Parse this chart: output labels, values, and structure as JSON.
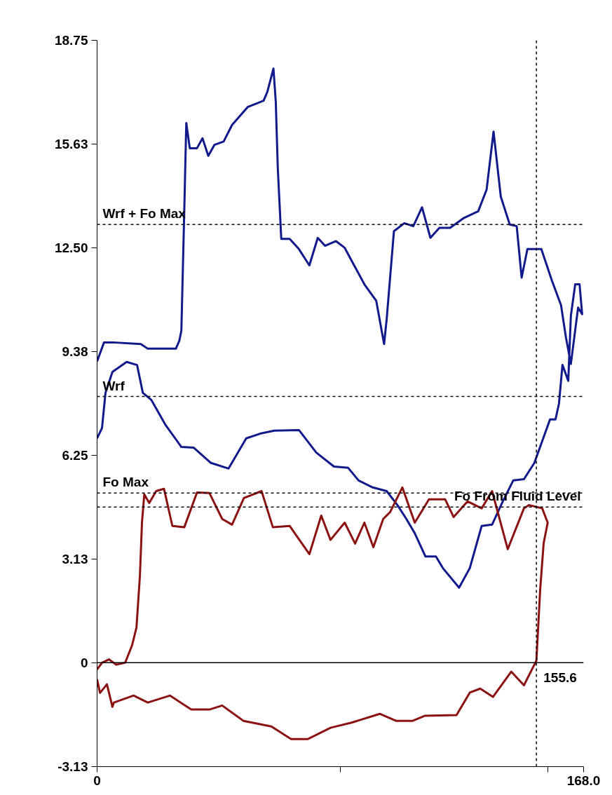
{
  "chart_data": {
    "type": "line",
    "xlim": [
      0,
      168
    ],
    "xticks": [
      0,
      {
        "value": 84,
        "label": null
      },
      {
        "value": 155.6,
        "label": null
      },
      {
        "value": 168,
        "label": "168.0"
      }
    ],
    "ylim": [
      -3.13,
      18.75
    ],
    "yticks": [
      18.75,
      15.63,
      {
        "value": 12.5,
        "label": "12.50"
      },
      9.38,
      6.25,
      3.13,
      0,
      -3.13
    ],
    "grid": false,
    "line_style": "solid",
    "series": [
      {
        "color": "#111a8c",
        "x": [
          0,
          1.7,
          2.9,
          5.3,
          10.2,
          13.8,
          15.8,
          18.7,
          23.5,
          29.1,
          33.3,
          39.3,
          45.4,
          51.5,
          56.3,
          61.2,
          69.7,
          75.7,
          81.8,
          86.7,
          90.3,
          95.2,
          100.0,
          103.7,
          106.8,
          109.7,
          113.4,
          117.0,
          119.4,
          125.0,
          128.7,
          132.8,
          136.4,
          140.1,
          143.7,
          147.4,
          151.0,
          156.4,
          158.3,
          159.5,
          160.7,
          162.7,
          163.6,
          165.1,
          166.6,
          167.5,
          166.1,
          163.6,
          161.9,
          160.2,
          157.1,
          153.4,
          148.6,
          146.6,
          144.9,
          142.5,
          139.4,
          136.9,
          134.5,
          131.6,
          126.7,
          121.9,
          118.2,
          115.1,
          112.2,
          109.2,
          106.1,
          102.5,
          100.0,
          99.1,
          96.4,
          92.3,
          88.4,
          85.5,
          82.5,
          78.7,
          76.2,
          73.3,
          69.7,
          66.5,
          63.6,
          62.4,
          61.7,
          60.9,
          58.8,
          57.5,
          52.0,
          46.6,
          43.7,
          40.5,
          38.4,
          36.4,
          34.5,
          32.0,
          30.8,
          30.1,
          29.1,
          28.4,
          27.2,
          17.5,
          15.1,
          5.3,
          2.4,
          0
        ],
        "values": [
          6.76,
          7.07,
          8.13,
          8.76,
          9.06,
          8.97,
          8.13,
          7.92,
          7.18,
          6.5,
          6.48,
          6.02,
          5.85,
          6.76,
          6.9,
          6.99,
          7.01,
          6.33,
          5.91,
          5.87,
          5.49,
          5.28,
          5.17,
          4.75,
          4.33,
          3.9,
          3.2,
          3.2,
          2.85,
          2.26,
          2.85,
          4.12,
          4.16,
          4.86,
          5.49,
          5.53,
          6.02,
          7.33,
          7.33,
          7.81,
          8.97,
          8.49,
          10.45,
          11.4,
          11.4,
          10.5,
          10.7,
          9.0,
          9.8,
          10.77,
          11.5,
          12.46,
          12.46,
          11.6,
          13.15,
          13.2,
          14.04,
          16.0,
          14.25,
          13.6,
          13.4,
          13.1,
          13.1,
          12.8,
          13.72,
          13.15,
          13.24,
          13.0,
          10.35,
          9.6,
          10.9,
          11.4,
          12.03,
          12.5,
          12.7,
          12.56,
          12.8,
          11.97,
          12.46,
          12.77,
          12.77,
          14.9,
          16.9,
          17.9,
          17.2,
          16.93,
          16.74,
          16.2,
          15.7,
          15.6,
          15.27,
          15.8,
          15.5,
          15.5,
          16.26,
          13.6,
          10.0,
          9.7,
          9.46,
          9.46,
          9.6,
          9.65,
          9.65,
          9.08
        ]
      },
      {
        "color": "#8c1212",
        "x": [
          0,
          1.7,
          4.1,
          6.6,
          9.7,
          12.1,
          13.6,
          14.8,
          15.5,
          16.3,
          18.0,
          20.4,
          23.1,
          26.0,
          30.1,
          34.5,
          38.8,
          43.2,
          46.6,
          50.7,
          56.8,
          60.7,
          66.5,
          73.3,
          77.4,
          80.6,
          85.5,
          89.1,
          92.3,
          95.4,
          98.8,
          101.2,
          105.4,
          109.7,
          114.6,
          120.2,
          123.1,
          127.9,
          132.8,
          136.4,
          141.8,
          147.4,
          149.1,
          153.7,
          155.6,
          154.2,
          153.0,
          151.7,
          150.0,
          147.4,
          143.0,
          136.7,
          132.3,
          128.7,
          124.1,
          113.1,
          109.0,
          103.2,
          97.6,
          88.1,
          80.6,
          72.8,
          67.0,
          60.2,
          50.5,
          43.2,
          38.8,
          32.5,
          25.2,
          17.5,
          12.6,
          5.8,
          5.3,
          3.4,
          1.0,
          0
        ],
        "values": [
          -0.2,
          0,
          0.1,
          -0.06,
          0,
          0.53,
          1.06,
          2.64,
          4.22,
          5.07,
          4.81,
          5.17,
          5.24,
          4.12,
          4.08,
          5.13,
          5.11,
          4.33,
          4.16,
          4.96,
          5.17,
          4.08,
          4.12,
          3.27,
          4.43,
          3.7,
          4.22,
          3.59,
          4.22,
          3.48,
          4.33,
          4.54,
          5.28,
          4.22,
          4.92,
          4.92,
          4.39,
          4.86,
          4.65,
          5.17,
          3.42,
          4.65,
          4.75,
          4.65,
          4.22,
          3.6,
          2.2,
          0.06,
          -0.23,
          -0.68,
          -0.27,
          -1.03,
          -0.78,
          -0.9,
          -1.58,
          -1.6,
          -1.75,
          -1.75,
          -1.54,
          -1.8,
          -1.96,
          -2.3,
          -2.3,
          -1.92,
          -1.75,
          -1.29,
          -1.41,
          -1.41,
          -0.99,
          -1.2,
          -0.99,
          -1.2,
          -1.33,
          -0.65,
          -0.91,
          -0.5
        ]
      }
    ],
    "ref_lines": [
      {
        "axis": "y",
        "value": 13.2,
        "label": "Wrf + Fo Max",
        "line_style": "dashed",
        "color": "#000000"
      },
      {
        "axis": "y",
        "value": 8.02,
        "label": "Wrf",
        "line_style": "dashed",
        "color": "#000000"
      },
      {
        "axis": "y",
        "value": 5.11,
        "label": "Fo Max",
        "line_style": "dashed",
        "color": "#000000"
      },
      {
        "axis": "y",
        "value": 4.69,
        "label": "Fo From Fluid Level",
        "line_style": "dashed",
        "color": "#000000"
      },
      {
        "axis": "y",
        "value": 0,
        "line_style": "solid",
        "color": "#000000"
      },
      {
        "axis": "x",
        "value": 151.7,
        "line_style": "dashed",
        "color": "#000000"
      }
    ],
    "annotations": [
      {
        "text": "155.6",
        "x": 155.6,
        "y": 0
      }
    ]
  }
}
